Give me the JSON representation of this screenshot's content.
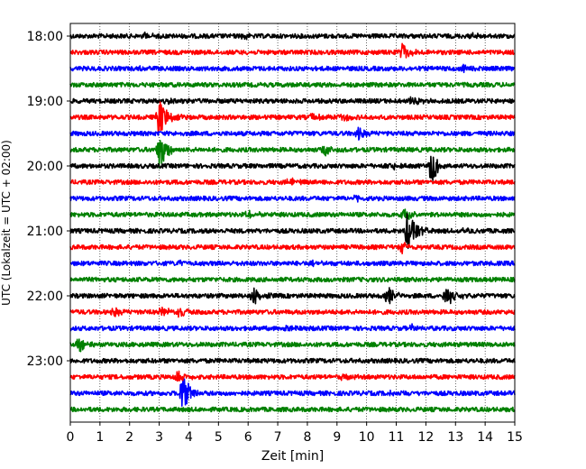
{
  "chart_data": {
    "type": "line",
    "chart_kind": "helicorder seismogram",
    "title": "",
    "xlabel": "Zeit  [min]",
    "ylabel": "UTC (Lokalzeit = UTC + 02:00)",
    "xlim": [
      0,
      15
    ],
    "x_ticks": [
      "0",
      "1",
      "2",
      "3",
      "4",
      "5",
      "6",
      "7",
      "8",
      "9",
      "10",
      "11",
      "12",
      "13",
      "14",
      "15"
    ],
    "y_ticks": [
      "18:00",
      "19:00",
      "20:00",
      "21:00",
      "22:00",
      "23:00"
    ],
    "grid": "vertical dotted",
    "line_minutes_per_trace": 15,
    "trace_colors": [
      "#000000",
      "#ff0000",
      "#0000ff",
      "#008000"
    ],
    "traces": [
      {
        "start": "18:00",
        "color": "#000000",
        "events": [
          {
            "minute": 2.5,
            "amp": 0.25
          },
          {
            "minute": 5.8,
            "amp": 0.2
          },
          {
            "minute": 13.6,
            "amp": 0.2
          }
        ]
      },
      {
        "start": "18:15",
        "color": "#ff0000",
        "events": [
          {
            "minute": 11.2,
            "amp": 0.7
          }
        ]
      },
      {
        "start": "18:30",
        "color": "#0000ff",
        "events": [
          {
            "minute": 13.2,
            "amp": 0.35
          },
          {
            "minute": 2.4,
            "amp": 0.15
          }
        ]
      },
      {
        "start": "18:45",
        "color": "#008000",
        "events": []
      },
      {
        "start": "19:00",
        "color": "#000000",
        "events": [
          {
            "minute": 11.5,
            "amp": 0.35
          },
          {
            "minute": 3.3,
            "amp": 0.2
          }
        ]
      },
      {
        "start": "19:15",
        "color": "#ff0000",
        "events": [
          {
            "minute": 3.0,
            "amp": 1.7
          },
          {
            "minute": 8.2,
            "amp": 0.3
          },
          {
            "minute": 9.2,
            "amp": 0.25
          }
        ]
      },
      {
        "start": "19:30",
        "color": "#0000ff",
        "events": [
          {
            "minute": 9.7,
            "amp": 0.45
          }
        ]
      },
      {
        "start": "19:45",
        "color": "#008000",
        "events": [
          {
            "minute": 3.0,
            "amp": 1.6
          },
          {
            "minute": 8.6,
            "amp": 0.4
          }
        ]
      },
      {
        "start": "20:00",
        "color": "#000000",
        "events": [
          {
            "minute": 12.2,
            "amp": 1.4
          },
          {
            "minute": 10.8,
            "amp": 0.3
          }
        ]
      },
      {
        "start": "20:15",
        "color": "#ff0000",
        "events": [
          {
            "minute": 7.4,
            "amp": 0.3
          }
        ]
      },
      {
        "start": "20:30",
        "color": "#0000ff",
        "events": [
          {
            "minute": 9.6,
            "amp": 0.2
          }
        ]
      },
      {
        "start": "20:45",
        "color": "#008000",
        "events": [
          {
            "minute": 6.0,
            "amp": 0.35
          },
          {
            "minute": 11.3,
            "amp": 0.5
          }
        ]
      },
      {
        "start": "21:00",
        "color": "#000000",
        "events": [
          {
            "minute": 11.4,
            "amp": 1.8
          },
          {
            "minute": 13.1,
            "amp": 0.25
          }
        ]
      },
      {
        "start": "21:15",
        "color": "#ff0000",
        "events": [
          {
            "minute": 11.2,
            "amp": 0.4
          }
        ]
      },
      {
        "start": "21:30",
        "color": "#0000ff",
        "events": [
          {
            "minute": 3.6,
            "amp": 0.2
          },
          {
            "minute": 8.1,
            "amp": 0.2
          }
        ]
      },
      {
        "start": "21:45",
        "color": "#008000",
        "events": []
      },
      {
        "start": "22:00",
        "color": "#000000",
        "events": [
          {
            "minute": 6.2,
            "amp": 0.8
          },
          {
            "minute": 10.7,
            "amp": 0.9
          },
          {
            "minute": 12.7,
            "amp": 0.9
          }
        ]
      },
      {
        "start": "22:15",
        "color": "#ff0000",
        "events": [
          {
            "minute": 1.5,
            "amp": 0.3
          },
          {
            "minute": 3.1,
            "amp": 0.35
          },
          {
            "minute": 3.7,
            "amp": 0.4
          }
        ]
      },
      {
        "start": "22:30",
        "color": "#0000ff",
        "events": [
          {
            "minute": 11.5,
            "amp": 0.3
          },
          {
            "minute": 7.2,
            "amp": 0.2
          }
        ]
      },
      {
        "start": "22:45",
        "color": "#008000",
        "events": [
          {
            "minute": 0.3,
            "amp": 0.5
          }
        ]
      },
      {
        "start": "23:00",
        "color": "#000000",
        "events": []
      },
      {
        "start": "23:15",
        "color": "#ff0000",
        "events": [
          {
            "minute": 3.6,
            "amp": 0.5
          },
          {
            "minute": 9.2,
            "amp": 0.2
          }
        ]
      },
      {
        "start": "23:30",
        "color": "#0000ff",
        "events": [
          {
            "minute": 3.8,
            "amp": 1.6
          },
          {
            "minute": 10.8,
            "amp": 0.25
          }
        ]
      },
      {
        "start": "23:45",
        "color": "#008000",
        "events": []
      }
    ]
  }
}
